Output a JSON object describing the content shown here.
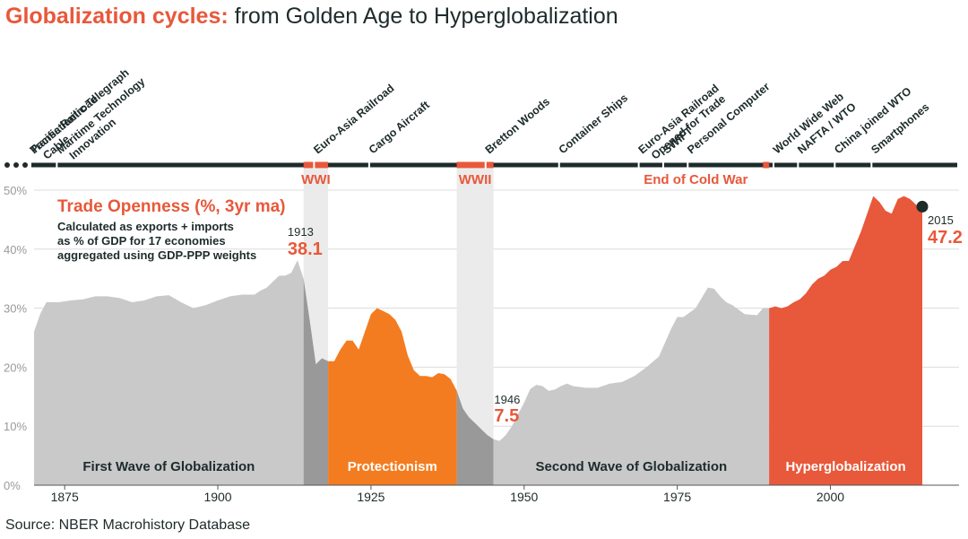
{
  "title_prefix": "Globalization cycles:",
  "title_rest": "from Golden Age to Hyperglobalization",
  "source": "Source: NBER Macrohistory Database",
  "colors": {
    "grey_area": "#c9c9c9",
    "dark_grey_area": "#999999",
    "orange_area": "#f47c20",
    "red_area": "#e8583a",
    "accent_text": "#e8583a",
    "timeline": "#1e2b2b",
    "war_band": "#ebebeb"
  },
  "chart_data": {
    "type": "area",
    "title": "Trade Openness (%, 3yr ma)",
    "subtitle": [
      "Calculated as exports + imports",
      "as % of GDP for 17 economies",
      "aggregated using GDP-PPP weights"
    ],
    "xlabel": "",
    "ylabel": "",
    "xlim": [
      1870,
      2021
    ],
    "ylim": [
      0,
      50
    ],
    "x_ticks": [
      1875,
      1900,
      1925,
      1950,
      1975,
      2000
    ],
    "y_ticks": [
      0,
      10,
      20,
      30,
      40,
      50
    ],
    "y_tick_labels": [
      "0%",
      "10%",
      "20%",
      "30%",
      "40%",
      "50%"
    ],
    "grid": true,
    "series": [
      {
        "name": "Trade Openness (%, 3yr ma)",
        "x": [
          1870,
          1871,
          1872,
          1874,
          1876,
          1878,
          1880,
          1882,
          1884,
          1886,
          1888,
          1890,
          1892,
          1894,
          1896,
          1898,
          1900,
          1902,
          1904,
          1906,
          1907,
          1908,
          1910,
          1911,
          1912,
          1913,
          1914,
          1915,
          1916,
          1917,
          1918,
          1919,
          1920,
          1921,
          1922,
          1923,
          1924,
          1925,
          1926,
          1927,
          1928,
          1929,
          1930,
          1931,
          1932,
          1933,
          1934,
          1935,
          1936,
          1937,
          1938,
          1939,
          1940,
          1941,
          1942,
          1943,
          1944,
          1945,
          1946,
          1947,
          1948,
          1949,
          1950,
          1951,
          1952,
          1953,
          1954,
          1955,
          1956,
          1957,
          1958,
          1960,
          1962,
          1964,
          1966,
          1968,
          1970,
          1972,
          1974,
          1975,
          1976,
          1978,
          1980,
          1981,
          1982,
          1983,
          1984,
          1986,
          1988,
          1989,
          1990,
          1991,
          1992,
          1993,
          1994,
          1995,
          1996,
          1997,
          1998,
          1999,
          2000,
          2001,
          2002,
          2003,
          2004,
          2005,
          2006,
          2007,
          2008,
          2009,
          2010,
          2011,
          2012,
          2013,
          2014,
          2015
        ],
        "values": [
          26,
          29,
          31,
          31,
          31.3,
          31.5,
          32,
          32,
          31.7,
          31,
          31.3,
          32,
          32.2,
          31,
          30,
          30.5,
          31.3,
          32,
          32.3,
          32.3,
          33,
          33.5,
          35.5,
          35.5,
          36,
          38.1,
          35,
          28,
          20.5,
          21.5,
          21,
          21,
          23,
          24.5,
          24.5,
          23,
          26,
          29,
          30,
          29.5,
          29,
          28,
          26,
          22,
          19.5,
          18.5,
          18.5,
          18.3,
          19,
          18.8,
          18,
          16,
          13,
          11.5,
          10.5,
          9.5,
          8.5,
          7.8,
          7.5,
          8.5,
          10,
          12,
          14,
          16.3,
          17,
          16.8,
          16,
          16.2,
          16.8,
          17.2,
          16.8,
          16.5,
          16.5,
          17.2,
          17.5,
          18.5,
          20,
          21.8,
          26.5,
          28.5,
          28.5,
          30,
          33.5,
          33.3,
          32,
          31,
          30.5,
          29,
          28.8,
          30,
          30,
          30.3,
          30,
          30.3,
          31,
          31.5,
          32.5,
          34,
          35,
          35.5,
          36.5,
          37,
          38,
          38,
          40.5,
          43,
          46,
          49,
          48,
          46.5,
          46,
          48.5,
          49,
          48.5,
          47.5,
          47.2
        ]
      }
    ],
    "phases": [
      {
        "label": "First Wave of Globalization",
        "start": 1870,
        "end": 1914
      },
      {
        "label": "Protectionism",
        "start": 1918,
        "end": 1939
      },
      {
        "label": "Second Wave of Globalization",
        "start": 1945,
        "end": 1990
      },
      {
        "label": "Hyperglobalization",
        "start": 1990,
        "end": 2015
      }
    ],
    "wars": [
      {
        "label": "WWI",
        "start": 1914,
        "end": 1918
      },
      {
        "label": "WWII",
        "start": 1939,
        "end": 1945
      },
      {
        "label": "End of Cold War",
        "start": 1989,
        "end": 1990
      }
    ],
    "annotations": [
      {
        "year_label": "1913",
        "value_label": "38.1",
        "x": 1913,
        "y": 38.1
      },
      {
        "year_label": "1946",
        "value_label": "7.5",
        "x": 1946,
        "y": 7.5
      },
      {
        "year_label": "2015",
        "value_label": "47.2",
        "x": 2015,
        "y": 47.2
      }
    ],
    "events": [
      {
        "lines": [
          "Transatlantic Telegraph",
          "Cable"
        ],
        "year": 1866
      },
      {
        "lines": [
          "Pacific Railroad"
        ],
        "year": 1869
      },
      {
        "lines": [
          "Maritime Technology",
          "Innovation"
        ],
        "year": 1874
      },
      {
        "lines": [
          "Euro-Asia Railroad"
        ],
        "year": 1916
      },
      {
        "lines": [
          "Cargo Aircraft"
        ],
        "year": 1925
      },
      {
        "lines": [
          "Bretton Woods"
        ],
        "year": 1944
      },
      {
        "lines": [
          "Container Ships"
        ],
        "year": 1956
      },
      {
        "lines": [
          "Euro-Asia Railroad",
          "Opened for Trade"
        ],
        "year": 1969
      },
      {
        "lines": [
          "SWIFT"
        ],
        "year": 1973
      },
      {
        "lines": [
          "Personal Computer"
        ],
        "year": 1977
      },
      {
        "lines": [
          "World Wide Web"
        ],
        "year": 1991
      },
      {
        "lines": [
          "NAFTA / WTO"
        ],
        "year": 1995
      },
      {
        "lines": [
          "China joined WTO"
        ],
        "year": 2001
      },
      {
        "lines": [
          "Smartphones"
        ],
        "year": 2007
      }
    ]
  }
}
